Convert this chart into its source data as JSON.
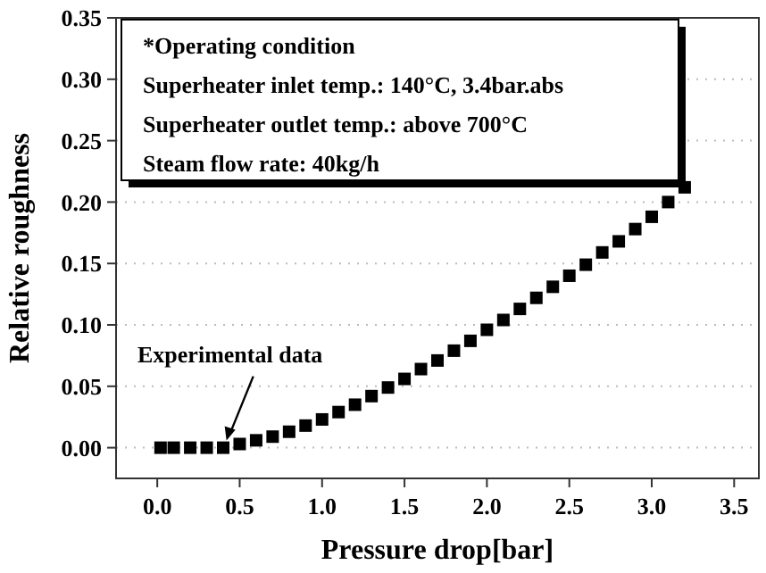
{
  "chart_data": {
    "type": "scatter",
    "xlabel": "Pressure drop[bar]",
    "ylabel": "Relative roughness",
    "x": [
      0.02,
      0.1,
      0.2,
      0.3,
      0.4,
      0.5,
      0.6,
      0.7,
      0.8,
      0.9,
      1.0,
      1.1,
      1.2,
      1.3,
      1.4,
      1.5,
      1.6,
      1.7,
      1.8,
      1.9,
      2.0,
      2.1,
      2.2,
      2.3,
      2.4,
      2.5,
      2.6,
      2.7,
      2.8,
      2.9,
      3.0,
      3.1,
      3.2
    ],
    "series": [
      {
        "color": "#000000",
        "values": [
          0,
          0,
          0,
          0,
          0,
          0.003,
          0.006,
          0.009,
          0.013,
          0.018,
          0.023,
          0.029,
          0.035,
          0.042,
          0.049,
          0.056,
          0.064,
          0.071,
          0.079,
          0.087,
          0.096,
          0.104,
          0.113,
          0.122,
          0.131,
          0.14,
          0.149,
          0.159,
          0.168,
          0.178,
          0.188,
          0.2,
          0.212
        ]
      }
    ],
    "marker": "square",
    "grid": "y",
    "xlim": [
      -0.25,
      3.65
    ],
    "ylim": [
      -0.025,
      0.35
    ],
    "xticks": [
      {
        "value": 0,
        "label": "0.0"
      },
      0.5,
      {
        "value": 1,
        "label": "1.0"
      },
      1.5,
      {
        "value": 2,
        "label": "2.0"
      },
      2.5,
      {
        "value": 3,
        "label": "3.0"
      },
      3.5
    ],
    "yticks": [
      {
        "value": 0,
        "label": "0.00"
      },
      0.05,
      {
        "value": 0.1,
        "label": "0.10"
      },
      0.15,
      {
        "value": 0.2,
        "label": "0.20"
      },
      0.25,
      {
        "value": 0.3,
        "label": "0.30"
      },
      0.35
    ],
    "annotations": [
      "*Operating condition",
      "Superheater inlet temp.: 140°C, 3.4bar.abs",
      "Superheater outlet temp.: above 700°C",
      "Steam flow rate: 40kg/h",
      {
        "text": "Experimental data",
        "x": 0.42,
        "y": 0
      }
    ]
  }
}
